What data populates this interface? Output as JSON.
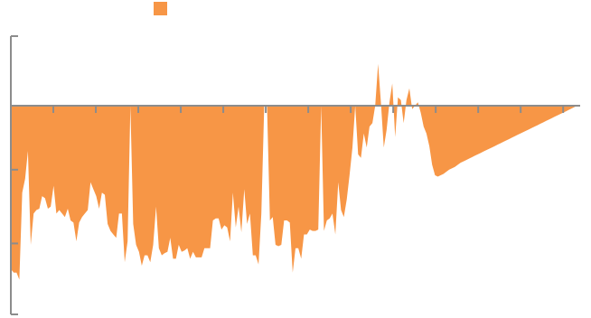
{
  "colors": {
    "area": "#f79646",
    "axis": "#8c8c8c",
    "background": "#ffffff"
  },
  "legend": {
    "swatch_color": "#f79646",
    "label": ""
  },
  "chart_data": {
    "type": "area",
    "title": "",
    "xlabel": "",
    "ylabel": "",
    "ylim": [
      -3,
      1
    ],
    "grid": false,
    "legend_position": "top",
    "baseline": 0,
    "x": [
      0,
      1,
      2,
      3,
      4,
      5,
      6,
      7,
      8,
      9,
      10,
      11,
      12,
      13,
      14,
      15,
      16,
      17,
      18,
      19,
      20,
      21,
      22,
      23,
      24,
      25,
      26,
      27,
      28,
      29,
      30,
      31,
      32,
      33,
      34,
      35,
      36,
      37,
      38,
      39,
      40,
      41,
      42,
      43,
      44,
      45,
      46,
      47,
      48,
      49,
      50,
      51,
      52,
      53,
      54,
      55,
      56,
      57,
      58,
      59,
      60,
      61,
      62,
      63,
      64,
      65,
      66,
      67,
      68,
      69,
      70,
      71,
      72,
      73,
      74,
      75,
      76,
      77,
      78,
      79,
      80,
      81,
      82,
      83,
      84,
      85,
      86,
      87,
      88,
      89,
      90,
      91,
      92,
      93,
      94,
      95,
      96,
      97,
      98,
      99,
      100,
      101,
      102,
      103,
      104,
      105,
      106,
      107,
      108,
      109,
      110,
      111,
      112,
      113,
      114,
      115,
      116,
      117,
      118,
      119,
      120,
      121,
      122,
      123,
      124,
      125,
      126,
      127,
      128,
      129,
      130,
      131,
      132,
      133,
      134,
      135,
      136,
      137,
      138,
      139,
      140,
      141,
      142,
      143,
      144,
      145,
      146,
      147,
      148,
      149,
      150,
      151,
      152,
      153,
      154,
      155,
      156,
      157,
      158,
      159,
      160,
      161,
      162,
      163,
      164,
      165,
      166,
      167,
      168,
      169,
      170,
      171,
      172,
      173,
      174,
      175,
      176,
      177,
      178,
      179,
      180,
      181,
      182,
      183,
      184,
      185,
      186,
      187,
      188,
      189,
      190,
      191,
      192,
      193,
      194,
      195,
      196,
      197,
      198,
      199,
      200
    ],
    "series": [
      {
        "values": [
          -2.35,
          -2.4,
          -2.4,
          -2.5,
          -1.25,
          -1.05,
          -0.65,
          -2.0,
          -1.55,
          -1.5,
          -1.48,
          -1.3,
          -1.33,
          -1.48,
          -1.45,
          -1.15,
          -1.55,
          -1.5,
          -1.55,
          -1.6,
          -1.48,
          -1.65,
          -1.68,
          -1.95,
          -1.68,
          -1.6,
          -1.55,
          -1.5,
          -1.1,
          -1.2,
          -1.3,
          -1.48,
          -1.25,
          -1.28,
          -1.7,
          -1.8,
          -1.85,
          -1.9,
          -1.55,
          -1.55,
          -2.25,
          -1.95,
          0,
          -1.7,
          -2.0,
          -2.1,
          -2.3,
          -2.15,
          -2.15,
          -2.25,
          -2.0,
          -1.45,
          -2.05,
          -2.15,
          -2.12,
          -2.1,
          -1.9,
          -2.2,
          -2.2,
          -2.0,
          -2.1,
          -2.08,
          -2.05,
          -2.2,
          -2.1,
          -2.18,
          -2.18,
          -2.18,
          -2.05,
          -2.05,
          -2.05,
          -1.65,
          -1.62,
          -1.62,
          -1.78,
          -1.72,
          -1.75,
          -1.95,
          -1.25,
          -1.75,
          -1.45,
          -1.82,
          -1.2,
          -1.7,
          -1.55,
          -2.15,
          -2.15,
          -2.28,
          -1.55,
          0,
          0,
          -1.65,
          -1.6,
          -2.0,
          -2.02,
          -2.0,
          -1.65,
          -1.65,
          -1.68,
          -2.4,
          -2.05,
          -2.05,
          -2.2,
          -1.85,
          -1.85,
          -1.78,
          -1.8,
          -1.8,
          -1.78,
          0,
          -1.8,
          -1.65,
          -1.62,
          -1.55,
          -1.85,
          -1.1,
          -1.5,
          -1.6,
          -1.35,
          -1.0,
          -0.6,
          0,
          -0.7,
          -0.75,
          -0.4,
          -0.6,
          -0.3,
          -0.25,
          0,
          0.6,
          0.05,
          -0.6,
          -0.35,
          0.05,
          0.32,
          -0.45,
          0.12,
          0.08,
          -0.25,
          0.08,
          0.25,
          -0.05,
          0,
          0.05,
          -0.1,
          -0.3,
          -0.4,
          -0.58,
          -0.85,
          -1.0,
          -1.02,
          -1.0,
          -0.98,
          -0.95,
          -0.92,
          -0.9,
          -0.88,
          -0.85,
          -0.82,
          -0.8,
          -0.78,
          -0.76,
          -0.74,
          -0.72,
          -0.7,
          -0.68,
          -0.66,
          -0.64,
          -0.62,
          -0.6,
          -0.58,
          -0.56,
          -0.54,
          -0.52,
          -0.5,
          -0.48,
          -0.46,
          -0.44,
          -0.42,
          -0.4,
          -0.38,
          -0.36,
          -0.34,
          -0.32,
          -0.3,
          -0.28,
          -0.26,
          -0.24,
          -0.22,
          -0.2,
          -0.18,
          -0.16,
          -0.14,
          -0.12,
          -0.1,
          -0.08,
          -0.06,
          -0.04,
          -0.02,
          0,
          0
        ]
      }
    ]
  }
}
